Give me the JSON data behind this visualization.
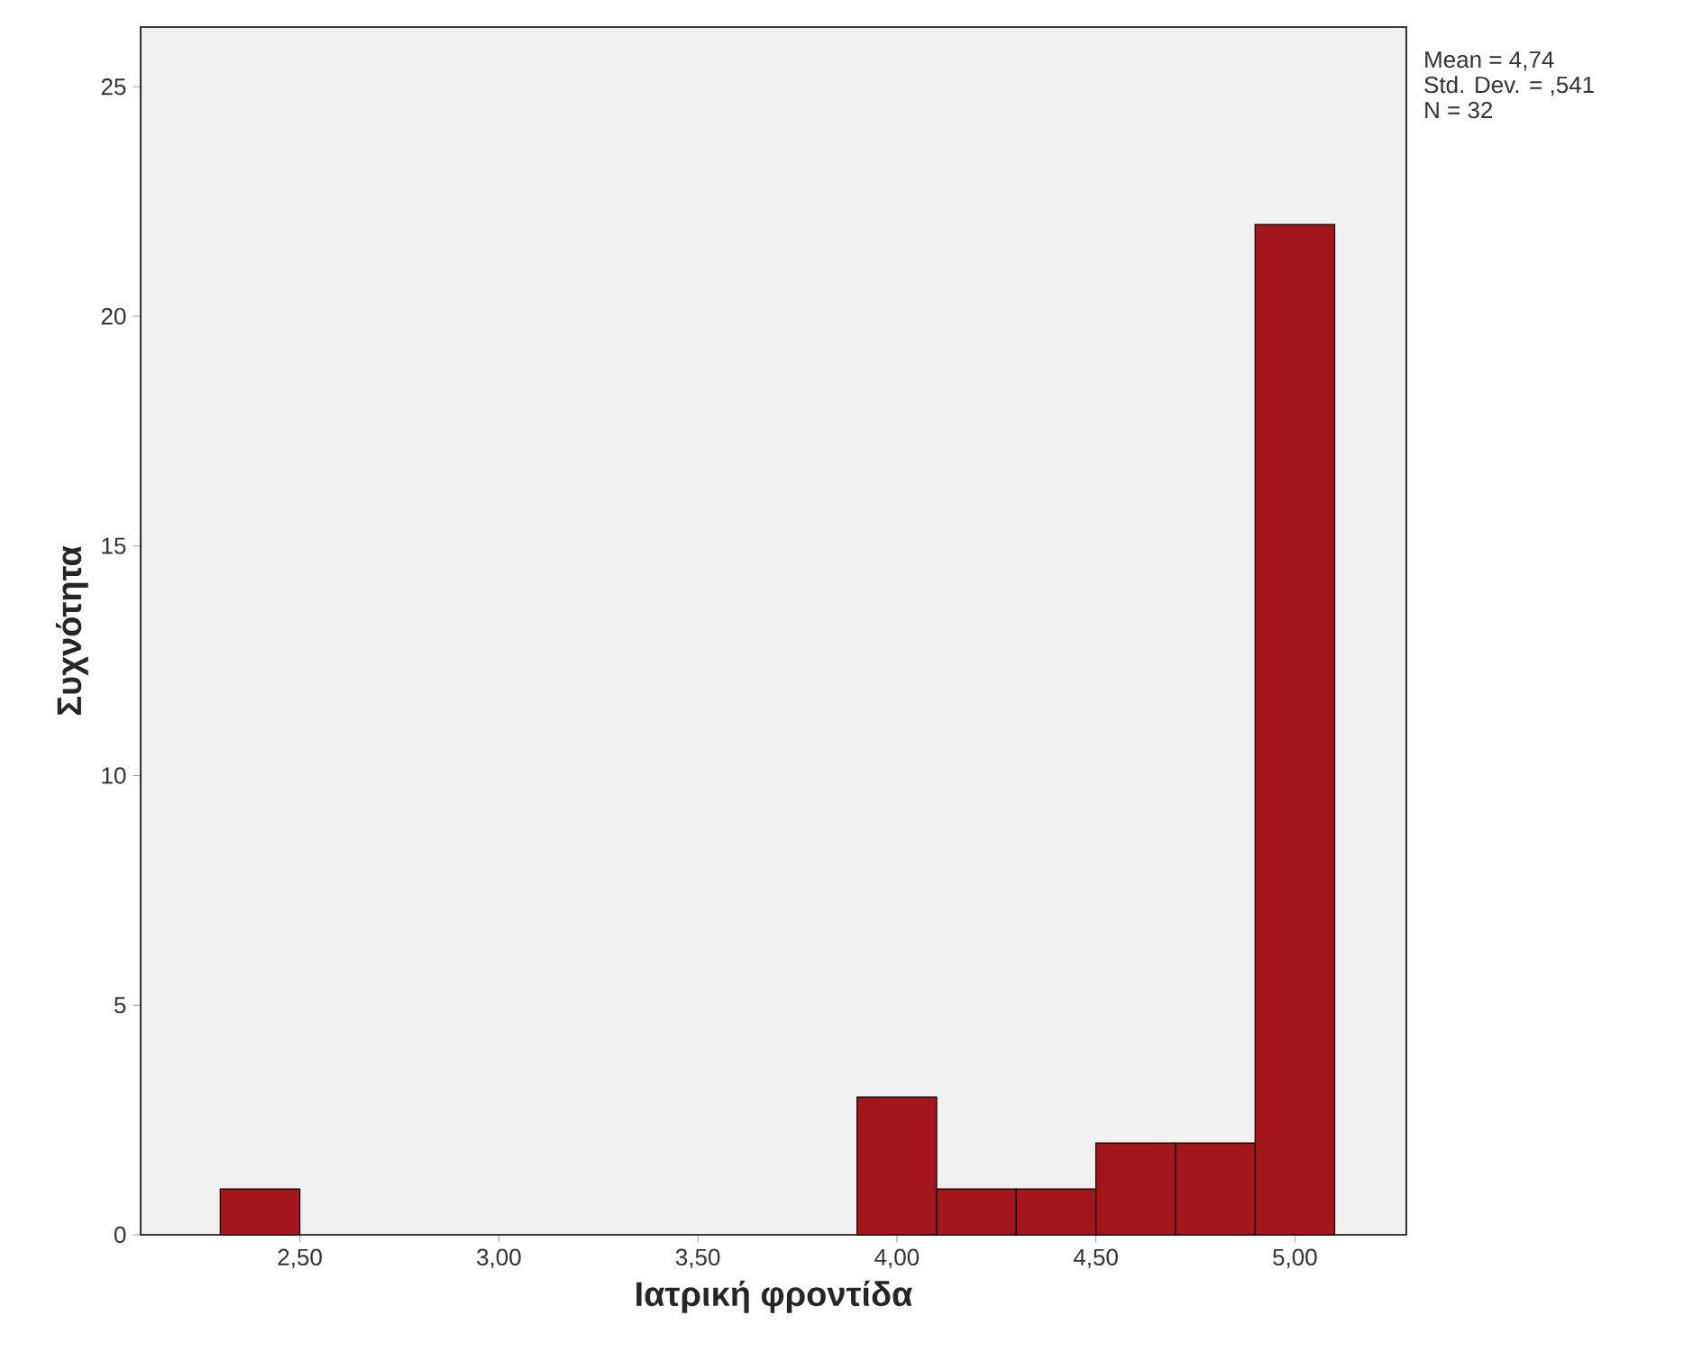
{
  "chart_data": {
    "type": "histogram",
    "xlabel": "Ιατρική φροντίδα",
    "ylabel": "Συχνότητα",
    "bins": [
      2.3,
      2.5,
      2.7,
      2.9,
      3.1,
      3.3,
      3.5,
      3.7,
      3.9,
      4.1,
      4.3,
      4.5,
      4.7,
      4.9,
      5.1
    ],
    "values": [
      1,
      0,
      0,
      0,
      0,
      0,
      0,
      0,
      3,
      1,
      1,
      2,
      2,
      22
    ],
    "color": "#a3171c",
    "xlim": [
      2.1,
      5.28
    ],
    "ylim": [
      0,
      26.3
    ],
    "xticks": [
      {
        "value": 2.5,
        "label": "2,50"
      },
      {
        "value": 3.0,
        "label": "3,00"
      },
      {
        "value": 3.5,
        "label": "3,50"
      },
      {
        "value": 4.0,
        "label": "4,00"
      },
      {
        "value": 4.5,
        "label": "4,50"
      },
      {
        "value": 5.0,
        "label": "5,00"
      }
    ],
    "yticks": [
      0,
      5,
      10,
      15,
      20,
      25
    ],
    "annotations": [
      "Mean = 4,74",
      "Std. Dev. = ,541",
      "N = 32"
    ],
    "grid": false
  }
}
